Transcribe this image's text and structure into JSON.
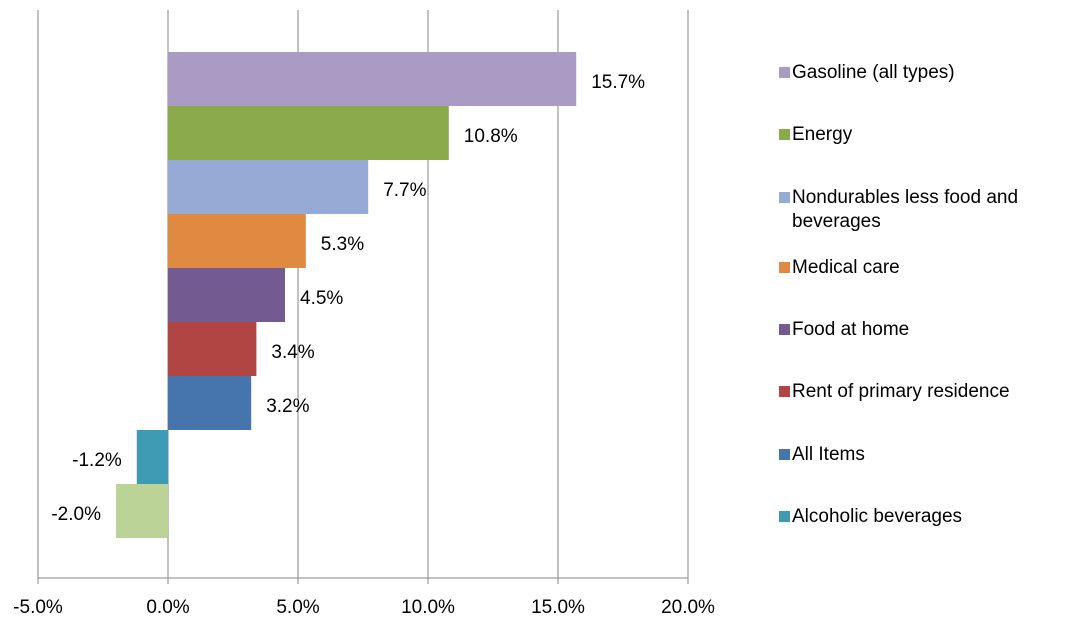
{
  "chart_data": {
    "type": "barh",
    "categories": [
      "Gasoline (all types)",
      "Energy",
      "Nondurables less food and beverages",
      "Medical care",
      "Food at home",
      "Rent of primary residence",
      "All Items",
      "Alcoholic beverages",
      null
    ],
    "values": [
      15.7,
      10.8,
      7.7,
      5.3,
      4.5,
      3.4,
      3.2,
      -1.2,
      -2.0
    ],
    "value_labels": [
      "15.7%",
      "10.8%",
      "7.7%",
      "5.3%",
      "4.5%",
      "3.4%",
      "3.2%",
      "-1.2%",
      "-2.0%"
    ],
    "colors": [
      "#a99bc3",
      "#8aaa4b",
      "#95abd5",
      "#df8a40",
      "#735b91",
      "#b04544",
      "#4674ac",
      "#3f9ab4",
      "#bcd397"
    ],
    "xlim": [
      -5,
      20
    ],
    "xticks": [
      {
        "value": -5,
        "label": "-5.0%"
      },
      {
        "value": 0,
        "label": "0.0%"
      },
      {
        "value": 5,
        "label": "5.0%"
      },
      {
        "value": 10,
        "label": "10.0%"
      },
      {
        "value": 15,
        "label": "15.0%"
      },
      {
        "value": 20,
        "label": "20.0%"
      }
    ],
    "grid": true,
    "legend": "right"
  }
}
